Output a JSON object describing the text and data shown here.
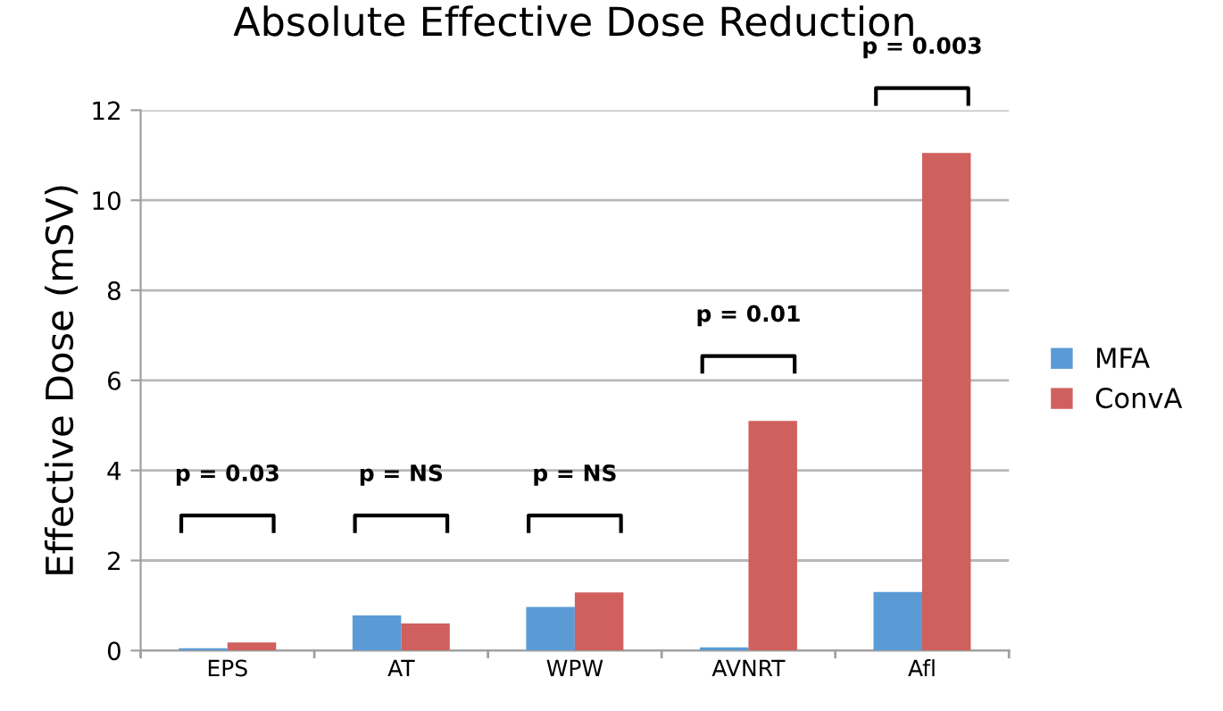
{
  "chart_data": {
    "type": "bar",
    "title": "Absolute Effective Dose Reduction",
    "ylabel": "Effective Dose (mSV)",
    "categories": [
      "EPS",
      "AT",
      "WPW",
      "AVNRT",
      "Afl"
    ],
    "series": [
      {
        "name": "MFA",
        "color": "#5b9bd5",
        "values": [
          0.05,
          0.78,
          0.97,
          0.07,
          1.3
        ]
      },
      {
        "name": "ConvA",
        "color": "#d0605e",
        "values": [
          0.18,
          0.6,
          1.29,
          5.1,
          11.05
        ]
      }
    ],
    "ylim": [
      0,
      12
    ],
    "yticks": [
      0,
      2,
      4,
      6,
      8,
      10,
      12
    ],
    "grid": "y",
    "legend": "right",
    "annotations": [
      "p = 0.03",
      "p = NS",
      "p = NS",
      "p = 0.01",
      "p = 0.003"
    ]
  }
}
